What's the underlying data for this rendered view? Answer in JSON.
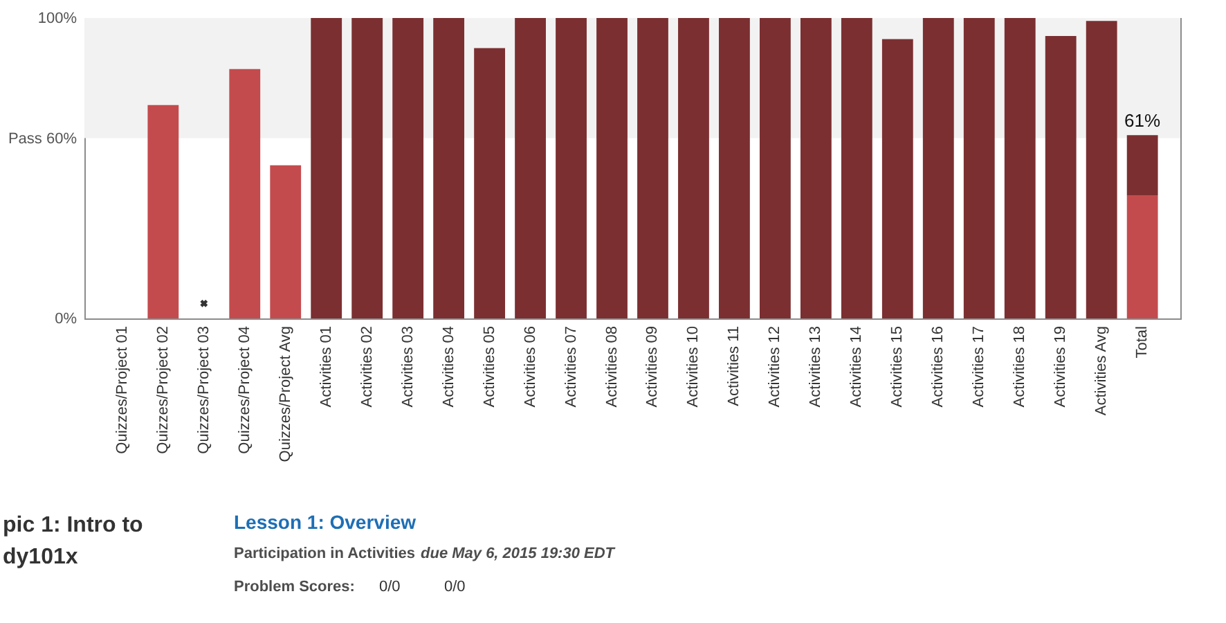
{
  "chart_data": {
    "type": "bar",
    "stacked": true,
    "categories": [
      "Quizzes/Project 01",
      "Quizzes/Project 02",
      "Quizzes/Project 03",
      "Quizzes/Project 04",
      "Quizzes/Project Avg",
      "Activities 01",
      "Activities 02",
      "Activities 03",
      "Activities 04",
      "Activities 05",
      "Activities 06",
      "Activities 07",
      "Activities 08",
      "Activities 09",
      "Activities 10",
      "Activities 11",
      "Activities 12",
      "Activities 13",
      "Activities 14",
      "Activities 15",
      "Activities 16",
      "Activities 17",
      "Activities 18",
      "Activities 19",
      "Activities Avg",
      "Total"
    ],
    "series": [
      {
        "color": "#c44b4d",
        "values": [
          0,
          71,
          0,
          83,
          51,
          null,
          null,
          null,
          null,
          null,
          null,
          null,
          null,
          null,
          null,
          null,
          null,
          null,
          null,
          null,
          null,
          null,
          null,
          null,
          null,
          41
        ]
      },
      {
        "color": "#7b2f31",
        "values": [
          null,
          null,
          null,
          null,
          null,
          100,
          100,
          100,
          100,
          90,
          100,
          100,
          100,
          100,
          100,
          100,
          100,
          100,
          100,
          93,
          100,
          100,
          100,
          94,
          99,
          20
        ]
      },
      {
        "type": "scatter",
        "marker": "cross",
        "color": "#333333",
        "x": [
          "Quizzes/Project 03"
        ],
        "values": [
          5
        ]
      }
    ],
    "ylim": [
      0,
      100
    ],
    "yticks": [
      {
        "value": 0,
        "label": "0%"
      },
      {
        "value": 60,
        "label": "Pass 60%"
      },
      {
        "value": 100,
        "label": "100%"
      }
    ],
    "bands": [
      {
        "axis": "y",
        "from": 60,
        "to": 100,
        "color": "#f2f2f2"
      }
    ],
    "totals": [
      null,
      null,
      null,
      null,
      null,
      null,
      null,
      null,
      null,
      null,
      null,
      null,
      null,
      null,
      null,
      null,
      null,
      null,
      null,
      null,
      null,
      null,
      null,
      null,
      null,
      "61%"
    ],
    "annotations": [
      "pic 1: Intro to",
      "dy101x",
      "Lesson 1: Overview",
      "Participation in Activities",
      "due May 6, 2015 19:30 EDT",
      "Problem Scores:",
      "0/0",
      "0/0"
    ]
  }
}
